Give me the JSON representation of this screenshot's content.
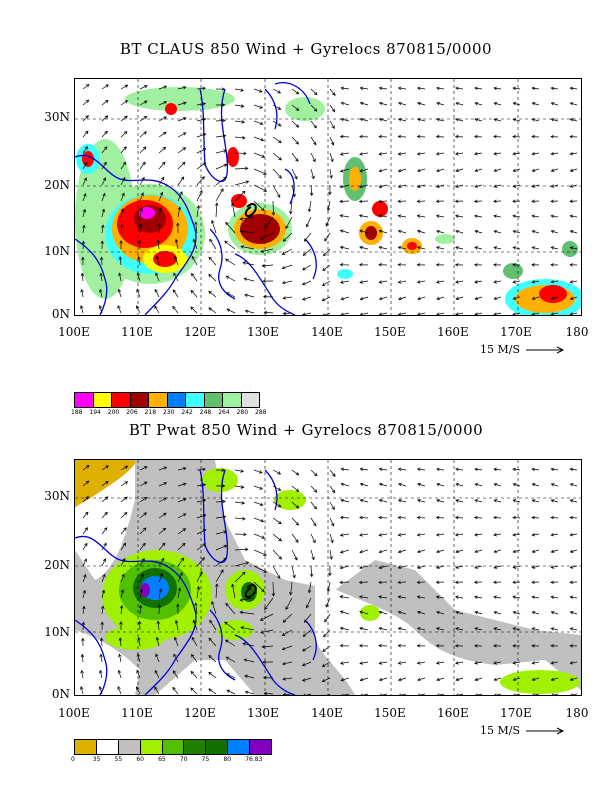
{
  "top": {
    "title": "BT CLAUS 850 Wind + Gyrelocs 870815/0000",
    "lat_labels": [
      "30N",
      "20N",
      "10N",
      "0N"
    ],
    "lon_labels": [
      "100E",
      "110E",
      "120E",
      "130E",
      "140E",
      "150E",
      "160E",
      "170E",
      "180"
    ],
    "ref_vector": "15 M/S",
    "colorbar": {
      "colors": [
        "#ff00ff",
        "#ffff00",
        "#ff0000",
        "#a00000",
        "#ffb000",
        "#0080ff",
        "#40ffff",
        "#60c070",
        "#a0f0a0",
        "#e0e0e0"
      ],
      "labels": [
        "188",
        "194",
        "200",
        "206",
        "218",
        "230",
        "242",
        "248",
        "264",
        "280",
        "288"
      ]
    }
  },
  "bottom": {
    "title": "BT Pwat 850 Wind + Gyrelocs 870815/0000",
    "lat_labels": [
      "30N",
      "20N",
      "10N",
      "0N"
    ],
    "lon_labels": [
      "100E",
      "110E",
      "120E",
      "130E",
      "140E",
      "150E",
      "160E",
      "170E",
      "180"
    ],
    "ref_vector": "15 M/S",
    "colorbar": {
      "colors": [
        "#e0b000",
        "#ffffff",
        "#c0c0c0",
        "#a0f000",
        "#50c000",
        "#208000",
        "#107000",
        "#0080ff",
        "#8000c0"
      ],
      "labels": [
        "0",
        "35",
        "55",
        "60",
        "65",
        "70",
        "75",
        "80",
        "76.83"
      ]
    }
  }
}
